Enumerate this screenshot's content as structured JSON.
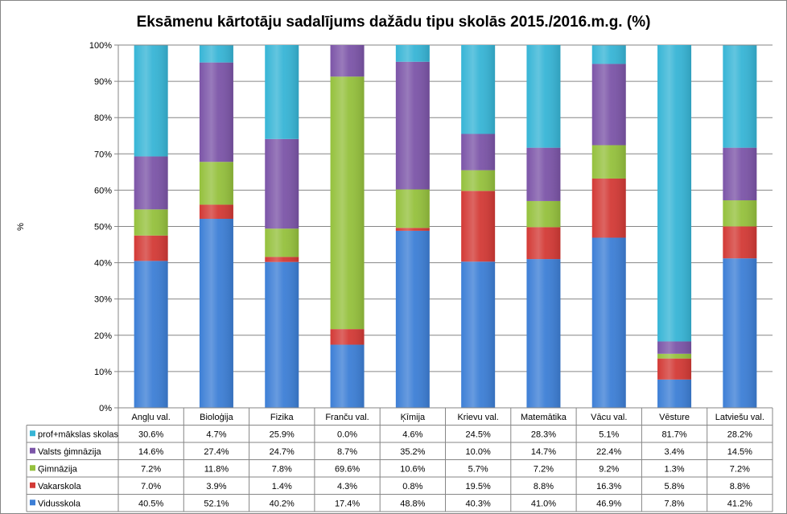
{
  "chart_data": {
    "type": "bar",
    "stacked": "percent",
    "title": "Eksāmenu kārtotāju sadalījums dažādu tipu skolās 2015./2016.m.g.  (%)",
    "ylabel": "%",
    "ylim": [
      0,
      100
    ],
    "yticks": [
      "0%",
      "10%",
      "20%",
      "30%",
      "40%",
      "50%",
      "60%",
      "70%",
      "80%",
      "90%",
      "100%"
    ],
    "grid": true,
    "legend": "data-table",
    "categories": [
      "Angļu val.",
      "Bioloģija",
      "Fizika",
      "Franču val.",
      "Ķīmija",
      "Krievu val.",
      "Matemātika",
      "Vācu val.",
      "Vēsture",
      "Latviešu val."
    ],
    "series": [
      {
        "name": "Vidusskola",
        "color": "#3d7fd6",
        "values": [
          40.5,
          52.1,
          40.2,
          17.4,
          48.8,
          40.3,
          41.0,
          46.9,
          7.8,
          41.2
        ],
        "labels": [
          "40.5%",
          "52.1%",
          "40.2%",
          "17.4%",
          "48.8%",
          "40.3%",
          "41.0%",
          "46.9%",
          "7.8%",
          "41.2%"
        ]
      },
      {
        "name": "Vakarskola",
        "color": "#d33a36",
        "values": [
          7.0,
          3.9,
          1.4,
          4.3,
          0.8,
          19.5,
          8.8,
          16.3,
          5.8,
          8.8
        ],
        "labels": [
          "7.0%",
          "3.9%",
          "1.4%",
          "4.3%",
          "0.8%",
          "19.5%",
          "8.8%",
          "16.3%",
          "5.8%",
          "8.8%"
        ]
      },
      {
        "name": "Ģimnāzija",
        "color": "#95c13d",
        "values": [
          7.2,
          11.8,
          7.8,
          69.6,
          10.6,
          5.7,
          7.2,
          9.2,
          1.3,
          7.2
        ],
        "labels": [
          "7.2%",
          "11.8%",
          "7.8%",
          "69.6%",
          "10.6%",
          "5.7%",
          "7.2%",
          "9.2%",
          "1.3%",
          "7.2%"
        ]
      },
      {
        "name": "Valsts ģimnāzija",
        "color": "#7c55a8",
        "values": [
          14.6,
          27.4,
          24.7,
          8.7,
          35.2,
          10.0,
          14.7,
          22.4,
          3.4,
          14.5
        ],
        "labels": [
          "14.6%",
          "27.4%",
          "24.7%",
          "8.7%",
          "35.2%",
          "10.0%",
          "14.7%",
          "22.4%",
          "3.4%",
          "14.5%"
        ]
      },
      {
        "name": "prof+mākslas skolas",
        "color": "#37b5d6",
        "values": [
          30.6,
          4.7,
          25.9,
          0.0,
          4.6,
          24.5,
          28.3,
          5.1,
          81.7,
          28.2
        ],
        "labels": [
          "30.6%",
          "4.7%",
          "25.9%",
          "0.0%",
          "4.6%",
          "24.5%",
          "28.3%",
          "5.1%",
          "81.7%",
          "28.2%"
        ]
      }
    ]
  }
}
